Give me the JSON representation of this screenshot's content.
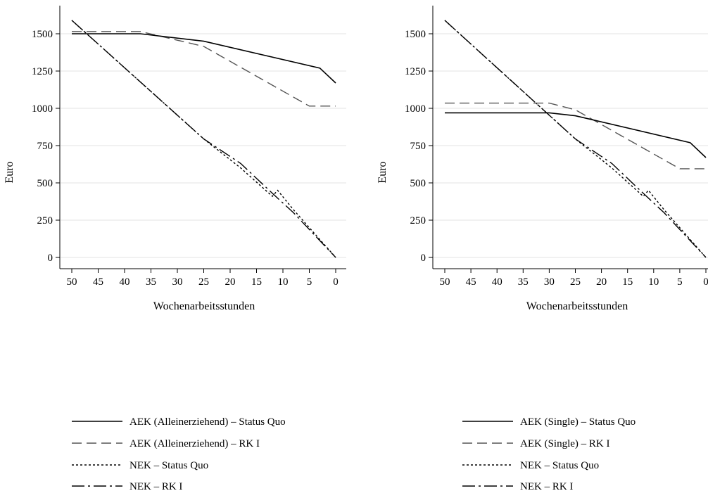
{
  "chart_data": [
    {
      "type": "line",
      "xlabel": "Wochenarbeitsstunden",
      "ylabel": "Euro",
      "xlim": [
        50,
        0
      ],
      "ylim": [
        0,
        1600
      ],
      "x_reversed": true,
      "x_ticks": [
        "50",
        "45",
        "40",
        "35",
        "30",
        "25",
        "20",
        "15",
        "10",
        "5",
        "0"
      ],
      "y_ticks": [
        "0",
        "250",
        "500",
        "750",
        "1000",
        "1250",
        "1500"
      ],
      "grid": "horizontal",
      "legend_position": "bottom",
      "series": [
        {
          "name": "AEK (Alleinerziehend) – Status Quo",
          "dash": "solid",
          "color": "#000000",
          "points": [
            [
              50,
              1500
            ],
            [
              37,
              1500
            ],
            [
              25,
              1450
            ],
            [
              3,
              1270
            ],
            [
              0,
              1170
            ]
          ]
        },
        {
          "name": "AEK (Alleinerziehend) – RK I",
          "dash": "dash",
          "color": "#555555",
          "points": [
            [
              50,
              1515
            ],
            [
              37,
              1515
            ],
            [
              25,
              1415
            ],
            [
              5,
              1015
            ],
            [
              0,
              1015
            ]
          ]
        },
        {
          "name": "NEK – Status Quo",
          "dash": "dot",
          "color": "#000000",
          "points": [
            [
              50,
              1590
            ],
            [
              25,
              795
            ],
            [
              18,
              600
            ],
            [
              12,
              410
            ],
            [
              11,
              450
            ],
            [
              8,
              320
            ],
            [
              0,
              0
            ]
          ]
        },
        {
          "name": "NEK – RK I",
          "dash": "dashdot",
          "color": "#000000",
          "points": [
            [
              50,
              1590
            ],
            [
              25,
              795
            ],
            [
              18,
              630
            ],
            [
              12,
              430
            ],
            [
              8,
              300
            ],
            [
              0,
              0
            ]
          ]
        }
      ]
    },
    {
      "type": "line",
      "xlabel": "Wochenarbeitsstunden",
      "ylabel": "Euro",
      "xlim": [
        50,
        0
      ],
      "ylim": [
        0,
        1600
      ],
      "x_reversed": true,
      "x_ticks": [
        "50",
        "45",
        "40",
        "35",
        "30",
        "25",
        "20",
        "15",
        "10",
        "5",
        "0"
      ],
      "y_ticks": [
        "0",
        "250",
        "500",
        "750",
        "1000",
        "1250",
        "1500"
      ],
      "grid": "horizontal",
      "legend_position": "bottom",
      "series": [
        {
          "name": "AEK (Single) – Status Quo",
          "dash": "solid",
          "color": "#000000",
          "points": [
            [
              50,
              970
            ],
            [
              30,
              970
            ],
            [
              25,
              950
            ],
            [
              3,
              770
            ],
            [
              0,
              670
            ]
          ]
        },
        {
          "name": "AEK (Single) – RK I",
          "dash": "dash",
          "color": "#555555",
          "points": [
            [
              50,
              1035
            ],
            [
              30,
              1035
            ],
            [
              25,
              990
            ],
            [
              5,
              595
            ],
            [
              0,
              595
            ]
          ]
        },
        {
          "name": "NEK – Status Quo",
          "dash": "dot",
          "color": "#000000",
          "points": [
            [
              50,
              1590
            ],
            [
              25,
              795
            ],
            [
              18,
              600
            ],
            [
              12,
              410
            ],
            [
              11,
              450
            ],
            [
              8,
              320
            ],
            [
              0,
              0
            ]
          ]
        },
        {
          "name": "NEK – RK I",
          "dash": "dashdot",
          "color": "#000000",
          "points": [
            [
              50,
              1590
            ],
            [
              25,
              795
            ],
            [
              18,
              630
            ],
            [
              12,
              430
            ],
            [
              8,
              300
            ],
            [
              0,
              0
            ]
          ]
        }
      ]
    }
  ]
}
